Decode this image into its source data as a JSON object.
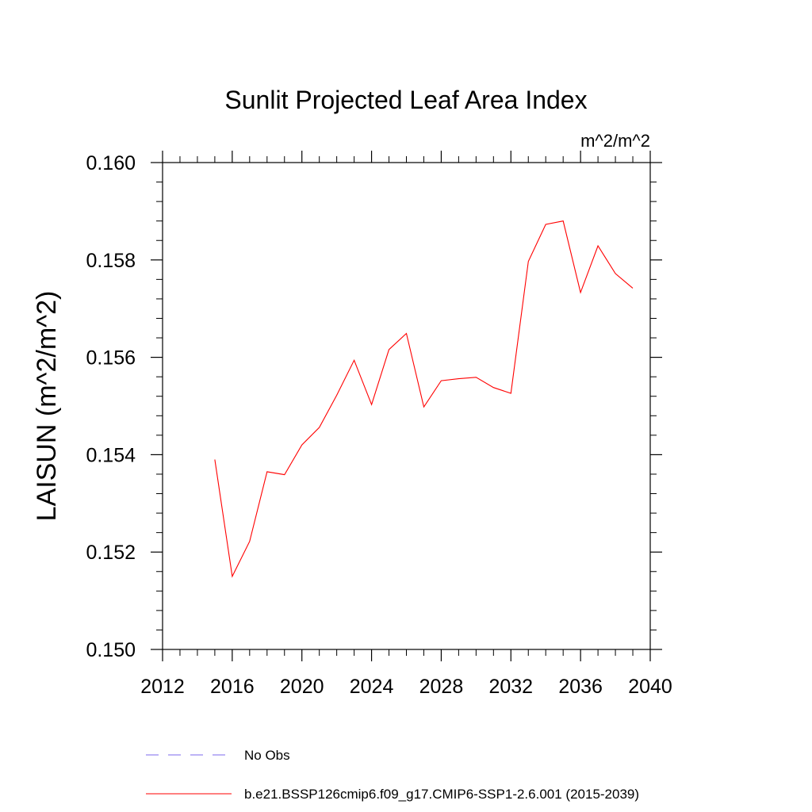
{
  "chart_data": {
    "type": "line",
    "title": "Sunlit Projected Leaf Area Index",
    "units": "m^2/m^2",
    "ylabel": "LAISUN  (m^2/m^2)",
    "xlabel": "",
    "xlim": [
      2012,
      2040
    ],
    "ylim": [
      0.15,
      0.16
    ],
    "xticks": [
      2012,
      2016,
      2020,
      2024,
      2028,
      2032,
      2036,
      2040
    ],
    "xtick_labels": [
      "2012",
      "2016",
      "2020",
      "2024",
      "2028",
      "2032",
      "2036",
      "2040"
    ],
    "yticks": [
      0.15,
      0.152,
      0.154,
      0.156,
      0.158,
      0.16
    ],
    "ytick_labels": [
      "0.150",
      "0.152",
      "0.154",
      "0.156",
      "0.158",
      "0.160"
    ],
    "grid": false,
    "legend_position": "bottom",
    "series": [
      {
        "name": "b.e21.BSSP126cmip6.f09_g17.CMIP6-SSP1-2.6.001 (2015-2039)",
        "color": "#ff0000",
        "style": "solid",
        "x": [
          2015,
          2016,
          2017,
          2018,
          2019,
          2020,
          2021,
          2022,
          2023,
          2024,
          2025,
          2026,
          2027,
          2028,
          2029,
          2030,
          2031,
          2032,
          2033,
          2034,
          2035,
          2036,
          2037,
          2038,
          2039
        ],
        "y": [
          0.1539,
          0.1515,
          0.15222,
          0.15365,
          0.15359,
          0.1542,
          0.15456,
          0.15522,
          0.15594,
          0.15503,
          0.15616,
          0.15649,
          0.15498,
          0.15552,
          0.15556,
          0.15559,
          0.15538,
          0.15526,
          0.15797,
          0.15873,
          0.1588,
          0.15733,
          0.15829,
          0.15772,
          0.15742
        ]
      }
    ],
    "legend": [
      {
        "label": "No Obs",
        "color": "#7b68ee",
        "style": "dashed"
      },
      {
        "label": "b.e21.BSSP126cmip6.f09_g17.CMIP6-SSP1-2.6.001 (2015-2039)",
        "color": "#ff0000",
        "style": "solid"
      }
    ]
  }
}
